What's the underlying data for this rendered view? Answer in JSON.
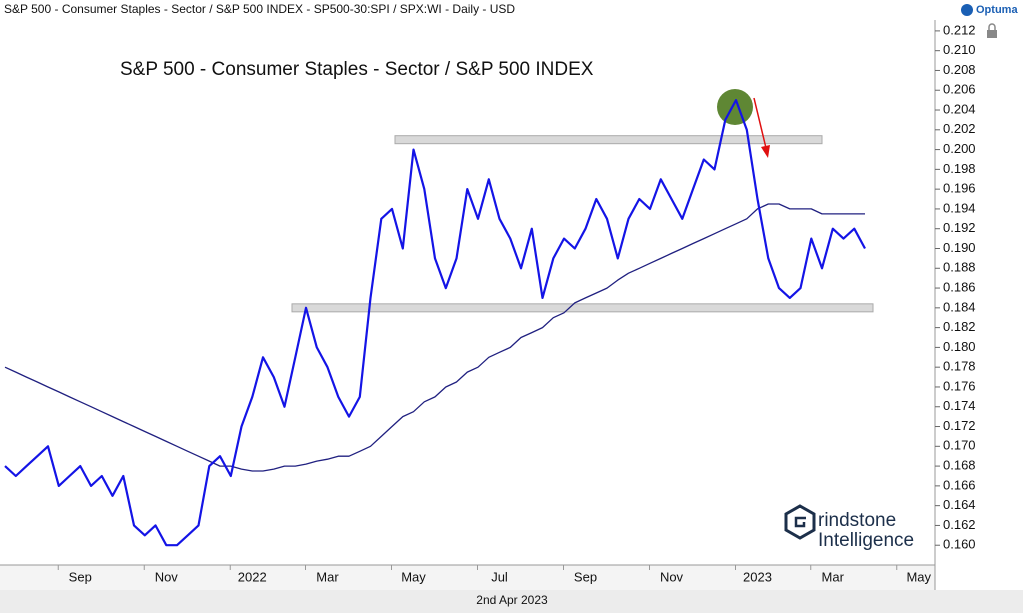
{
  "header": "S&P 500 - Consumer Staples - Sector / S&P 500 INDEX - SP500-30:SPI / SPX:WI - Daily - USD",
  "brand": "Optuma",
  "footer": "2nd Apr 2023",
  "watermark": [
    "rindstone",
    "Intelligence"
  ],
  "chart_data": {
    "type": "line",
    "title": "S&P 500 - Consumer Staples - Sector / S&P 500 INDEX",
    "categories": [
      null,
      null,
      null,
      null,
      null,
      null,
      null,
      "Sep",
      null,
      null,
      null,
      null,
      null,
      null,
      null,
      "Nov",
      null,
      null,
      null,
      null,
      null,
      null,
      null,
      "2022",
      null,
      null,
      null,
      null,
      null,
      null,
      "Mar",
      null,
      null,
      null,
      null,
      null,
      null,
      null,
      "May",
      null,
      null,
      null,
      null,
      null,
      null,
      null,
      "Jul",
      null,
      null,
      null,
      null,
      null,
      null,
      null,
      "Sep",
      null,
      null,
      null,
      null,
      null,
      null,
      null,
      "Nov",
      null,
      null,
      null,
      null,
      null,
      null,
      null,
      "2023",
      null,
      null,
      null,
      null,
      null,
      null,
      "Mar",
      null,
      null,
      null,
      null,
      null,
      null,
      null,
      "May"
    ],
    "series": [
      {
        "color": "#1414e6",
        "values": [
          0.168,
          0.167,
          0.168,
          0.169,
          0.17,
          0.166,
          0.167,
          0.168,
          0.166,
          0.167,
          0.165,
          0.167,
          0.162,
          0.161,
          0.162,
          0.16,
          0.16,
          0.161,
          0.162,
          0.168,
          0.169,
          0.167,
          0.172,
          0.175,
          0.179,
          0.177,
          0.174,
          0.179,
          0.184,
          0.18,
          0.178,
          0.175,
          0.173,
          0.175,
          0.185,
          0.193,
          0.194,
          0.19,
          0.2,
          0.196,
          0.189,
          0.186,
          0.189,
          0.196,
          0.193,
          0.197,
          0.193,
          0.191,
          0.188,
          0.192,
          0.185,
          0.189,
          0.191,
          0.19,
          0.192,
          0.195,
          0.193,
          0.189,
          0.193,
          0.195,
          0.194,
          0.197,
          0.195,
          0.193,
          0.196,
          0.199,
          0.198,
          0.203,
          0.205,
          0.202,
          0.195,
          0.189,
          0.186,
          0.185,
          0.186,
          0.191,
          0.188,
          0.192,
          0.191,
          0.192,
          0.19,
          null,
          null,
          null,
          null,
          null
        ]
      },
      {
        "color": "#202080",
        "values": [
          0.178,
          0.1775,
          0.177,
          0.1765,
          0.176,
          0.1755,
          0.175,
          0.1745,
          0.174,
          0.1735,
          0.173,
          0.1725,
          0.172,
          0.1715,
          0.171,
          0.1705,
          0.17,
          0.1695,
          0.169,
          0.1685,
          0.168,
          0.168,
          0.1677,
          0.1675,
          0.1675,
          0.1677,
          0.168,
          0.168,
          0.1682,
          0.1685,
          0.1687,
          0.169,
          0.169,
          0.1695,
          0.17,
          0.171,
          0.172,
          0.173,
          0.1735,
          0.1745,
          0.175,
          0.176,
          0.1765,
          0.1775,
          0.178,
          0.179,
          0.1795,
          0.18,
          0.181,
          0.1815,
          0.182,
          0.183,
          0.1835,
          0.1845,
          0.185,
          0.1855,
          0.186,
          0.1868,
          0.1875,
          0.188,
          0.1885,
          0.189,
          0.1895,
          0.19,
          0.1905,
          0.191,
          0.1915,
          0.192,
          0.1925,
          0.193,
          0.194,
          0.1945,
          0.1945,
          0.194,
          0.194,
          0.194,
          0.1935,
          0.1935,
          0.1935,
          0.1935,
          0.1935,
          null,
          null,
          null,
          null,
          null
        ]
      }
    ],
    "levels": [
      0.201,
      0.184
    ],
    "ylim": [
      0.158,
      0.213
    ],
    "yticks": [
      {
        "value": 0.16,
        "label": "0.160"
      },
      0.162,
      0.164,
      0.166,
      0.168,
      {
        "value": 0.17,
        "label": "0.170"
      },
      0.172,
      0.174,
      0.176,
      0.178,
      {
        "value": 0.18,
        "label": "0.180"
      },
      0.182,
      0.184,
      0.186,
      0.188,
      {
        "value": 0.19,
        "label": "0.190"
      },
      0.192,
      0.194,
      0.196,
      0.198,
      {
        "value": 0.2,
        "label": "0.200"
      },
      0.202,
      0.204,
      0.206,
      0.208,
      {
        "value": 0.21,
        "label": "0.210"
      },
      0.212
    ],
    "y_axis_side": "right",
    "grid": false
  }
}
